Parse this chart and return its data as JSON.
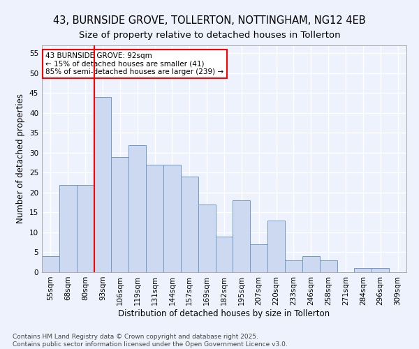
{
  "title_line1": "43, BURNSIDE GROVE, TOLLERTON, NOTTINGHAM, NG12 4EB",
  "title_line2": "Size of property relative to detached houses in Tollerton",
  "xlabel": "Distribution of detached houses by size in Tollerton",
  "ylabel": "Number of detached properties",
  "categories": [
    "55sqm",
    "68sqm",
    "80sqm",
    "93sqm",
    "106sqm",
    "119sqm",
    "131sqm",
    "144sqm",
    "157sqm",
    "169sqm",
    "182sqm",
    "195sqm",
    "207sqm",
    "220sqm",
    "233sqm",
    "246sqm",
    "258sqm",
    "271sqm",
    "284sqm",
    "296sqm",
    "309sqm"
  ],
  "values": [
    4,
    22,
    22,
    44,
    29,
    32,
    27,
    27,
    24,
    17,
    9,
    18,
    7,
    13,
    3,
    4,
    3,
    0,
    1,
    1,
    0
  ],
  "bar_color": "#ccd9f0",
  "bar_edge_color": "#7099c8",
  "red_line_x": 3.0,
  "annotation_text": "43 BURNSIDE GROVE: 92sqm\n← 15% of detached houses are smaller (41)\n85% of semi-detached houses are larger (239) →",
  "annotation_box_color": "white",
  "annotation_box_edge_color": "red",
  "ylim": [
    0,
    57
  ],
  "yticks": [
    0,
    5,
    10,
    15,
    20,
    25,
    30,
    35,
    40,
    45,
    50,
    55
  ],
  "background_color": "#eef2fc",
  "grid_color": "#ffffff",
  "footer_text": "Contains HM Land Registry data © Crown copyright and database right 2025.\nContains public sector information licensed under the Open Government Licence v3.0.",
  "title_fontsize": 10.5,
  "subtitle_fontsize": 9.5,
  "axis_label_fontsize": 8.5,
  "tick_fontsize": 7.5,
  "annotation_fontsize": 7.5,
  "footer_fontsize": 6.5
}
